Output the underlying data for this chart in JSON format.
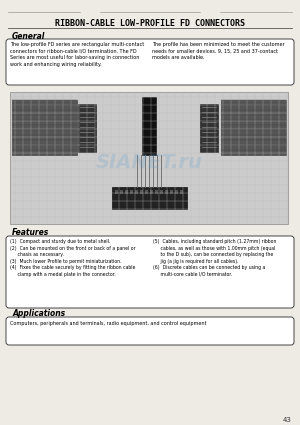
{
  "title": "RIBBON-CABLE LOW-PROFILE FD CONNECTORS",
  "bg_color": "#eeebe5",
  "page_number": "43",
  "general_heading": "General",
  "general_text_left": "The low-profile FD series are rectangular multi-contact\nconnectors for ribbon-cable I/O termination. The FD\nSeries are most useful for labor-saving in connection\nwork and enhancing wiring reliability.",
  "general_text_right": "The profile has been minimized to meet the customer\nneeds for smaller devices. 9, 15, 25 and 37-contact\nmodels are available.",
  "features_heading": "Features",
  "features_left": "(1)  Compact and sturdy due to metal shell.\n(2)  Can be mounted on the front or back of a panel or\n     chasis as necessary.\n(3)  Much lower Profile to permit miniaturization.\n(4)  Fixes the cable securely by fitting the ribbon cable\n     clamp with a medal plate in the connector.",
  "features_right": "(5)  Cables, including standard pitch (1.27mm) ribbon\n     cables, as well as those with 1.00mm pitch (equal\n     to the D sub), can be connected by replacing the\n     jig (a jig is required for all cables).\n(6)  Discrete cables can be connected by using a\n     multi-core cable I/O terminator.",
  "applications_heading": "Applications",
  "applications_text": "Computers, peripherals and terminals, radio equipment, and control equipment"
}
